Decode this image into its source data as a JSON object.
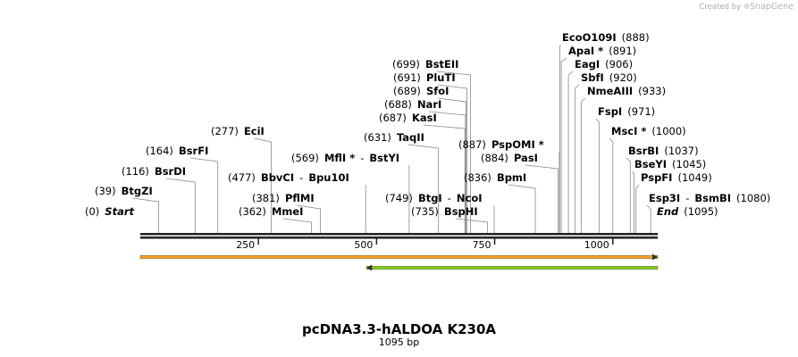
{
  "branding": {
    "created_by": "Created by",
    "product": "SnapGene"
  },
  "plasmid": {
    "name": "pcDNA3.3-hALDOA K230A",
    "length_label": "1095 bp"
  },
  "chart_data": {
    "type": "restriction_map",
    "sequence_length": 1095,
    "axis_ticks": [
      250,
      500,
      750,
      1000
    ],
    "start_label": "Start",
    "end_label": "End",
    "features": [
      {
        "name": "orange-feature",
        "start": 1,
        "end": 1095,
        "strand": "+",
        "color": "#f5a623"
      },
      {
        "name": "green-feature",
        "start": 480,
        "end": 1095,
        "strand": "-",
        "color": "#7ed321"
      }
    ],
    "sites": [
      {
        "parts": [
          {
            "pos": "(0)"
          },
          {
            "name": "Start",
            "italic": true
          }
        ]
      },
      {
        "parts": [
          {
            "pos": "(39)"
          },
          {
            "name": "BtgZI"
          }
        ]
      },
      {
        "parts": [
          {
            "pos": "(116)"
          },
          {
            "name": "BsrDI"
          }
        ]
      },
      {
        "parts": [
          {
            "pos": "(164)"
          },
          {
            "name": "BsrFI"
          }
        ]
      },
      {
        "parts": [
          {
            "pos": "(277)"
          },
          {
            "name": "EciI"
          }
        ]
      },
      {
        "parts": [
          {
            "pos": "(362)"
          },
          {
            "name": "MmeI"
          }
        ]
      },
      {
        "parts": [
          {
            "pos": "(381)"
          },
          {
            "name": "PflMI"
          }
        ]
      },
      {
        "parts": [
          {
            "pos": "(477)"
          },
          {
            "name": "BbvCI"
          },
          {
            "sep": "-"
          },
          {
            "name": "Bpu10I"
          }
        ]
      },
      {
        "parts": [
          {
            "pos": "(569)"
          },
          {
            "name": "MflI *"
          },
          {
            "sep": "-"
          },
          {
            "name": "BstYI"
          }
        ]
      },
      {
        "parts": [
          {
            "pos": "(631)"
          },
          {
            "name": "TaqII"
          }
        ]
      },
      {
        "parts": [
          {
            "pos": "(687)"
          },
          {
            "name": "KasI"
          }
        ]
      },
      {
        "parts": [
          {
            "pos": "(688)"
          },
          {
            "name": "NarI"
          }
        ]
      },
      {
        "parts": [
          {
            "pos": "(689)"
          },
          {
            "name": "SfoI"
          }
        ]
      },
      {
        "parts": [
          {
            "pos": "(691)"
          },
          {
            "name": "PluTI"
          }
        ]
      },
      {
        "parts": [
          {
            "pos": "(699)"
          },
          {
            "name": "BstEII"
          }
        ]
      },
      {
        "parts": [
          {
            "pos": "(735)"
          },
          {
            "name": "BspHI"
          }
        ]
      },
      {
        "parts": [
          {
            "pos": "(749)"
          },
          {
            "name": "BtgI"
          },
          {
            "sep": "-"
          },
          {
            "name": "NcoI"
          }
        ]
      },
      {
        "parts": [
          {
            "pos": "(836)"
          },
          {
            "name": "BpmI"
          }
        ]
      },
      {
        "parts": [
          {
            "pos": "(884)"
          },
          {
            "name": "PasI"
          }
        ]
      },
      {
        "parts": [
          {
            "pos": "(887)"
          },
          {
            "name": "PspOMI *"
          }
        ]
      },
      {
        "parts": [
          {
            "name": "EcoO109I"
          },
          {
            "pos": "(888)"
          }
        ]
      },
      {
        "parts": [
          {
            "name": "ApaI *"
          },
          {
            "pos": "(891)"
          }
        ]
      },
      {
        "parts": [
          {
            "name": "EagI"
          },
          {
            "pos": "(906)"
          }
        ]
      },
      {
        "parts": [
          {
            "name": "SbfI"
          },
          {
            "pos": "(920)"
          }
        ]
      },
      {
        "parts": [
          {
            "name": "NmeAIII"
          },
          {
            "pos": "(933)"
          }
        ]
      },
      {
        "parts": [
          {
            "name": "FspI"
          },
          {
            "pos": "(971)"
          }
        ]
      },
      {
        "parts": [
          {
            "name": "MscI *"
          },
          {
            "pos": "(1000)"
          }
        ]
      },
      {
        "parts": [
          {
            "name": "BsrBI"
          },
          {
            "pos": "(1037)"
          }
        ]
      },
      {
        "parts": [
          {
            "name": "BseYI"
          },
          {
            "pos": "(1045)"
          }
        ]
      },
      {
        "parts": [
          {
            "name": "PspFI"
          },
          {
            "pos": "(1049)"
          }
        ]
      },
      {
        "parts": [
          {
            "name": "Esp3I"
          },
          {
            "sep": "-"
          },
          {
            "name": "BsmBI"
          },
          {
            "pos": "(1080)"
          }
        ]
      },
      {
        "parts": [
          {
            "name": "End",
            "italic": true
          },
          {
            "pos": "(1095)"
          }
        ]
      }
    ]
  }
}
